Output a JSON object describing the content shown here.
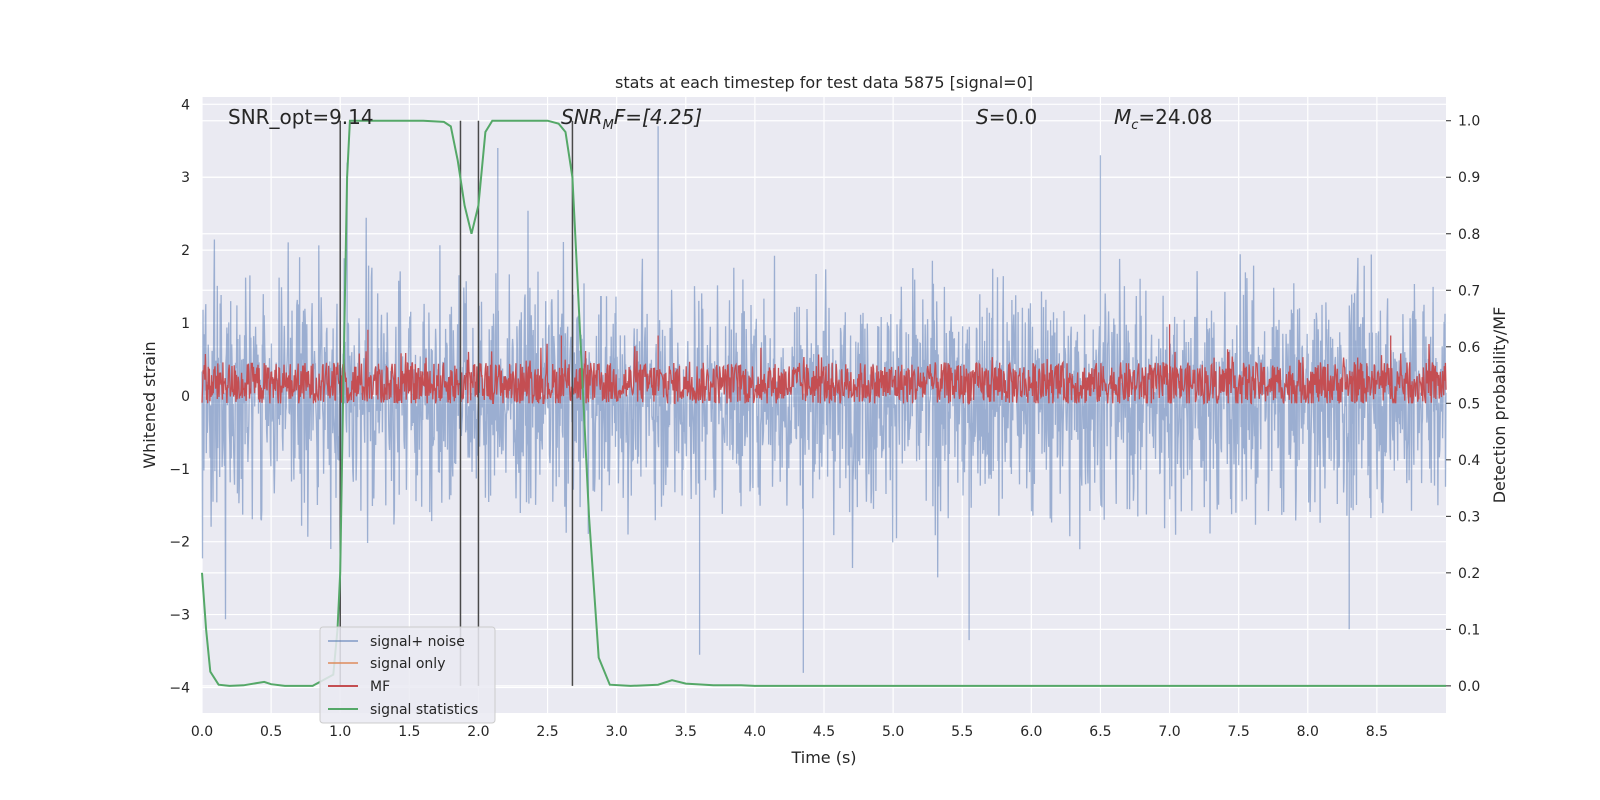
{
  "chart_data": {
    "type": "line",
    "title": "stats at each timestep for test data 5875 [signal=0]",
    "xlabel": "Time (s)",
    "ylabel": "Whitened strain",
    "y2label": "Detection probability/MF",
    "xlim": [
      0.0,
      9.0
    ],
    "ylim": [
      -4.35,
      4.1
    ],
    "y2lim": [
      -0.048,
      1.042
    ],
    "xticks": [
      "0.0",
      "0.5",
      "1.0",
      "1.5",
      "2.0",
      "2.5",
      "3.0",
      "3.5",
      "4.0",
      "4.5",
      "5.0",
      "5.5",
      "6.0",
      "6.5",
      "7.0",
      "7.5",
      "8.0",
      "8.5"
    ],
    "yticks": [
      "4",
      "3",
      "2",
      "1",
      "0",
      "−1",
      "−2",
      "−3",
      "−4"
    ],
    "y2ticks": [
      "1.0",
      "0.9",
      "0.8",
      "0.7",
      "0.6",
      "0.5",
      "0.4",
      "0.3",
      "0.2",
      "0.1",
      "0.0"
    ],
    "annotations": {
      "snr_opt": "SNR_opt=9.14",
      "snr_mf_main": "SNR",
      "snr_mf_sub": "M",
      "snr_mf_rest": "F=[4.25]",
      "s_main": "S",
      "s_rest": "=0.0",
      "mc_main": "M",
      "mc_sub": "c",
      "mc_rest": "=24.08"
    },
    "vlines_x": [
      1.0,
      1.87,
      2.0,
      2.68
    ],
    "legend": {
      "placement": "lower-left",
      "entries": [
        {
          "label": "signal+ noise",
          "color": "#4c72b0"
        },
        {
          "label": "signal only",
          "color": "#dd8452"
        },
        {
          "label": "MF",
          "color": "#c44e52"
        },
        {
          "label": "signal statistics",
          "color": "#55a868"
        }
      ]
    },
    "series": [
      {
        "name": "signal+ noise",
        "color": "#4c72b0",
        "description": "dense whitened strain noise, amplitude roughly between -3.8 and 3.7, axis y",
        "envelope_typical": [
          -2.0,
          2.2
        ],
        "peaks": [
          [
            1.05,
            3.2
          ],
          [
            2.14,
            3.4
          ],
          [
            3.3,
            3.7
          ],
          [
            6.5,
            3.3
          ],
          [
            4.35,
            -3.8
          ],
          [
            8.3,
            -3.2
          ],
          [
            3.6,
            -3.55
          ],
          [
            5.55,
            -3.35
          ]
        ]
      },
      {
        "name": "MF",
        "color": "#c44e52",
        "description": "matched filter output on right axis, mostly between 0.5 and 0.6",
        "y2_range": [
          0.5,
          0.6
        ],
        "peaks": [
          [
            1.0,
            0.61
          ],
          [
            1.2,
            0.63
          ],
          [
            2.6,
            0.62
          ],
          [
            3.3,
            0.62
          ],
          [
            7.0,
            0.64
          ],
          [
            8.6,
            0.62
          ]
        ]
      },
      {
        "name": "signal statistics",
        "color": "#55a868",
        "axis": "y2",
        "x": [
          0.0,
          0.03,
          0.06,
          0.12,
          0.2,
          0.3,
          0.4,
          0.45,
          0.5,
          0.6,
          0.8,
          0.95,
          0.98,
          1.0,
          1.02,
          1.05,
          1.07,
          1.1,
          1.3,
          1.6,
          1.75,
          1.8,
          1.85,
          1.9,
          1.95,
          2.0,
          2.05,
          2.1,
          2.15,
          2.25,
          2.5,
          2.58,
          2.63,
          2.68,
          2.72,
          2.8,
          2.87,
          2.95,
          3.1,
          3.3,
          3.4,
          3.5,
          3.7,
          3.9,
          4.0,
          5.0,
          6.0,
          7.0,
          8.0,
          9.0
        ],
        "y": [
          0.2,
          0.1,
          0.025,
          0.002,
          0.0,
          0.001,
          0.005,
          0.007,
          0.003,
          0.0,
          0.0,
          0.02,
          0.1,
          0.2,
          0.5,
          0.9,
          1.0,
          1.0,
          1.0,
          1.0,
          0.998,
          0.99,
          0.93,
          0.85,
          0.8,
          0.85,
          0.98,
          1.0,
          1.0,
          1.0,
          1.0,
          0.995,
          0.98,
          0.9,
          0.7,
          0.3,
          0.05,
          0.002,
          0.0,
          0.002,
          0.01,
          0.004,
          0.001,
          0.001,
          0.0,
          0.0,
          0.0,
          0.0,
          0.0,
          0.0
        ]
      }
    ]
  }
}
